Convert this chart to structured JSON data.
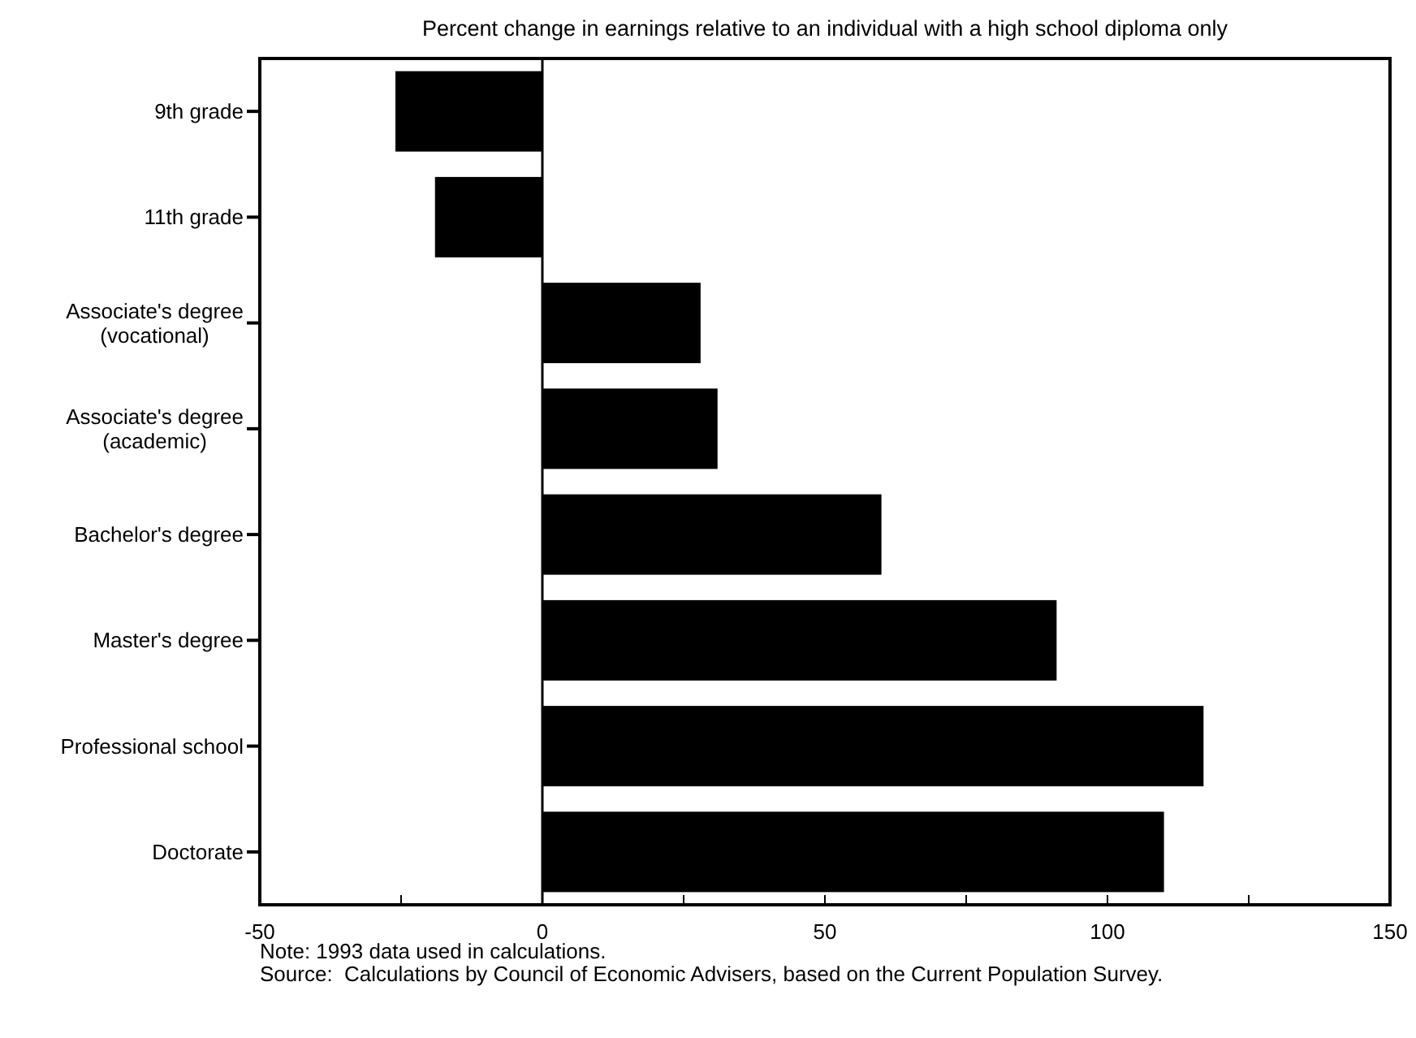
{
  "chart_data": {
    "type": "bar",
    "orientation": "horizontal",
    "title": "Percent change in earnings relative to an individual with a high school diploma only",
    "categories": [
      "9th grade",
      "11th grade",
      "Associate's degree (vocational)",
      "Associate's degree (academic)",
      "Bachelor's degree",
      "Master's degree",
      "Professional school",
      "Doctorate"
    ],
    "values": [
      -26,
      -19,
      28,
      31,
      60,
      91,
      117,
      110
    ],
    "color": "#000000",
    "xlim": [
      -50,
      150
    ],
    "xticks": [
      -50,
      {
        "value": -25,
        "label": null
      },
      0,
      {
        "value": 25,
        "label": null
      },
      50,
      {
        "value": 75,
        "label": null
      },
      100,
      {
        "value": 125,
        "label": null
      },
      150
    ],
    "ref_lines": [
      {
        "axis": "x",
        "value": 0,
        "color": "#000000"
      }
    ],
    "grid": false,
    "annotations": [
      "Note: 1993 data used in calculations.",
      "Source:  Calculations by Council of Economic Advisers, based on the Current Population Survey."
    ]
  }
}
